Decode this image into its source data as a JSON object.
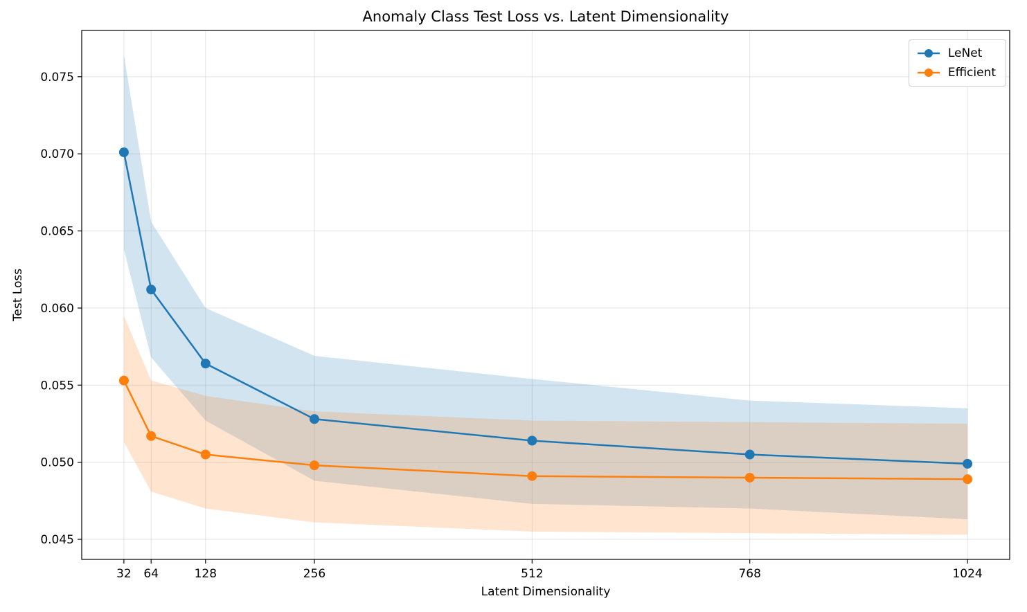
{
  "chart_data": {
    "type": "line",
    "title": "Anomaly Class Test Loss vs. Latent Dimensionality",
    "xlabel": "Latent Dimensionality",
    "ylabel": "Test Loss",
    "grid": true,
    "legend_position": "upper right",
    "band_alpha": 0.2,
    "x": [
      32,
      64,
      128,
      256,
      512,
      768,
      1024
    ],
    "series": [
      {
        "name": "LeNet",
        "color": "#1f77b4",
        "values": [
          0.0701,
          0.0612,
          0.0564,
          0.0528,
          0.0514,
          0.0505,
          0.0499
        ],
        "band_upper": [
          0.0764,
          0.0656,
          0.06,
          0.0569,
          0.0554,
          0.054,
          0.0535
        ],
        "band_lower": [
          0.0638,
          0.0568,
          0.0527,
          0.0488,
          0.0473,
          0.047,
          0.0463
        ]
      },
      {
        "name": "Efficient",
        "color": "#ff7f0e",
        "values": [
          0.0553,
          0.0517,
          0.0505,
          0.0498,
          0.0491,
          0.049,
          0.0489
        ],
        "band_upper": [
          0.0595,
          0.0553,
          0.0543,
          0.0533,
          0.0527,
          0.0526,
          0.0525
        ],
        "band_lower": [
          0.0513,
          0.0481,
          0.047,
          0.0461,
          0.0455,
          0.0454,
          0.0453
        ]
      }
    ],
    "x_ticks": {
      "values": [
        32,
        64,
        128,
        256,
        512,
        768,
        1024
      ],
      "labels": [
        "32",
        "64",
        "128",
        "256",
        "512",
        "768",
        "1024"
      ]
    },
    "y_ticks": {
      "values": [
        0.045,
        0.05,
        0.055,
        0.06,
        0.065,
        0.07,
        0.075
      ],
      "labels": [
        "0.045",
        "0.050",
        "0.055",
        "0.060",
        "0.065",
        "0.070",
        "0.075"
      ]
    },
    "xlim": [
      -17.6,
      1073.6
    ],
    "ylim": [
      0.0437,
      0.078
    ]
  }
}
